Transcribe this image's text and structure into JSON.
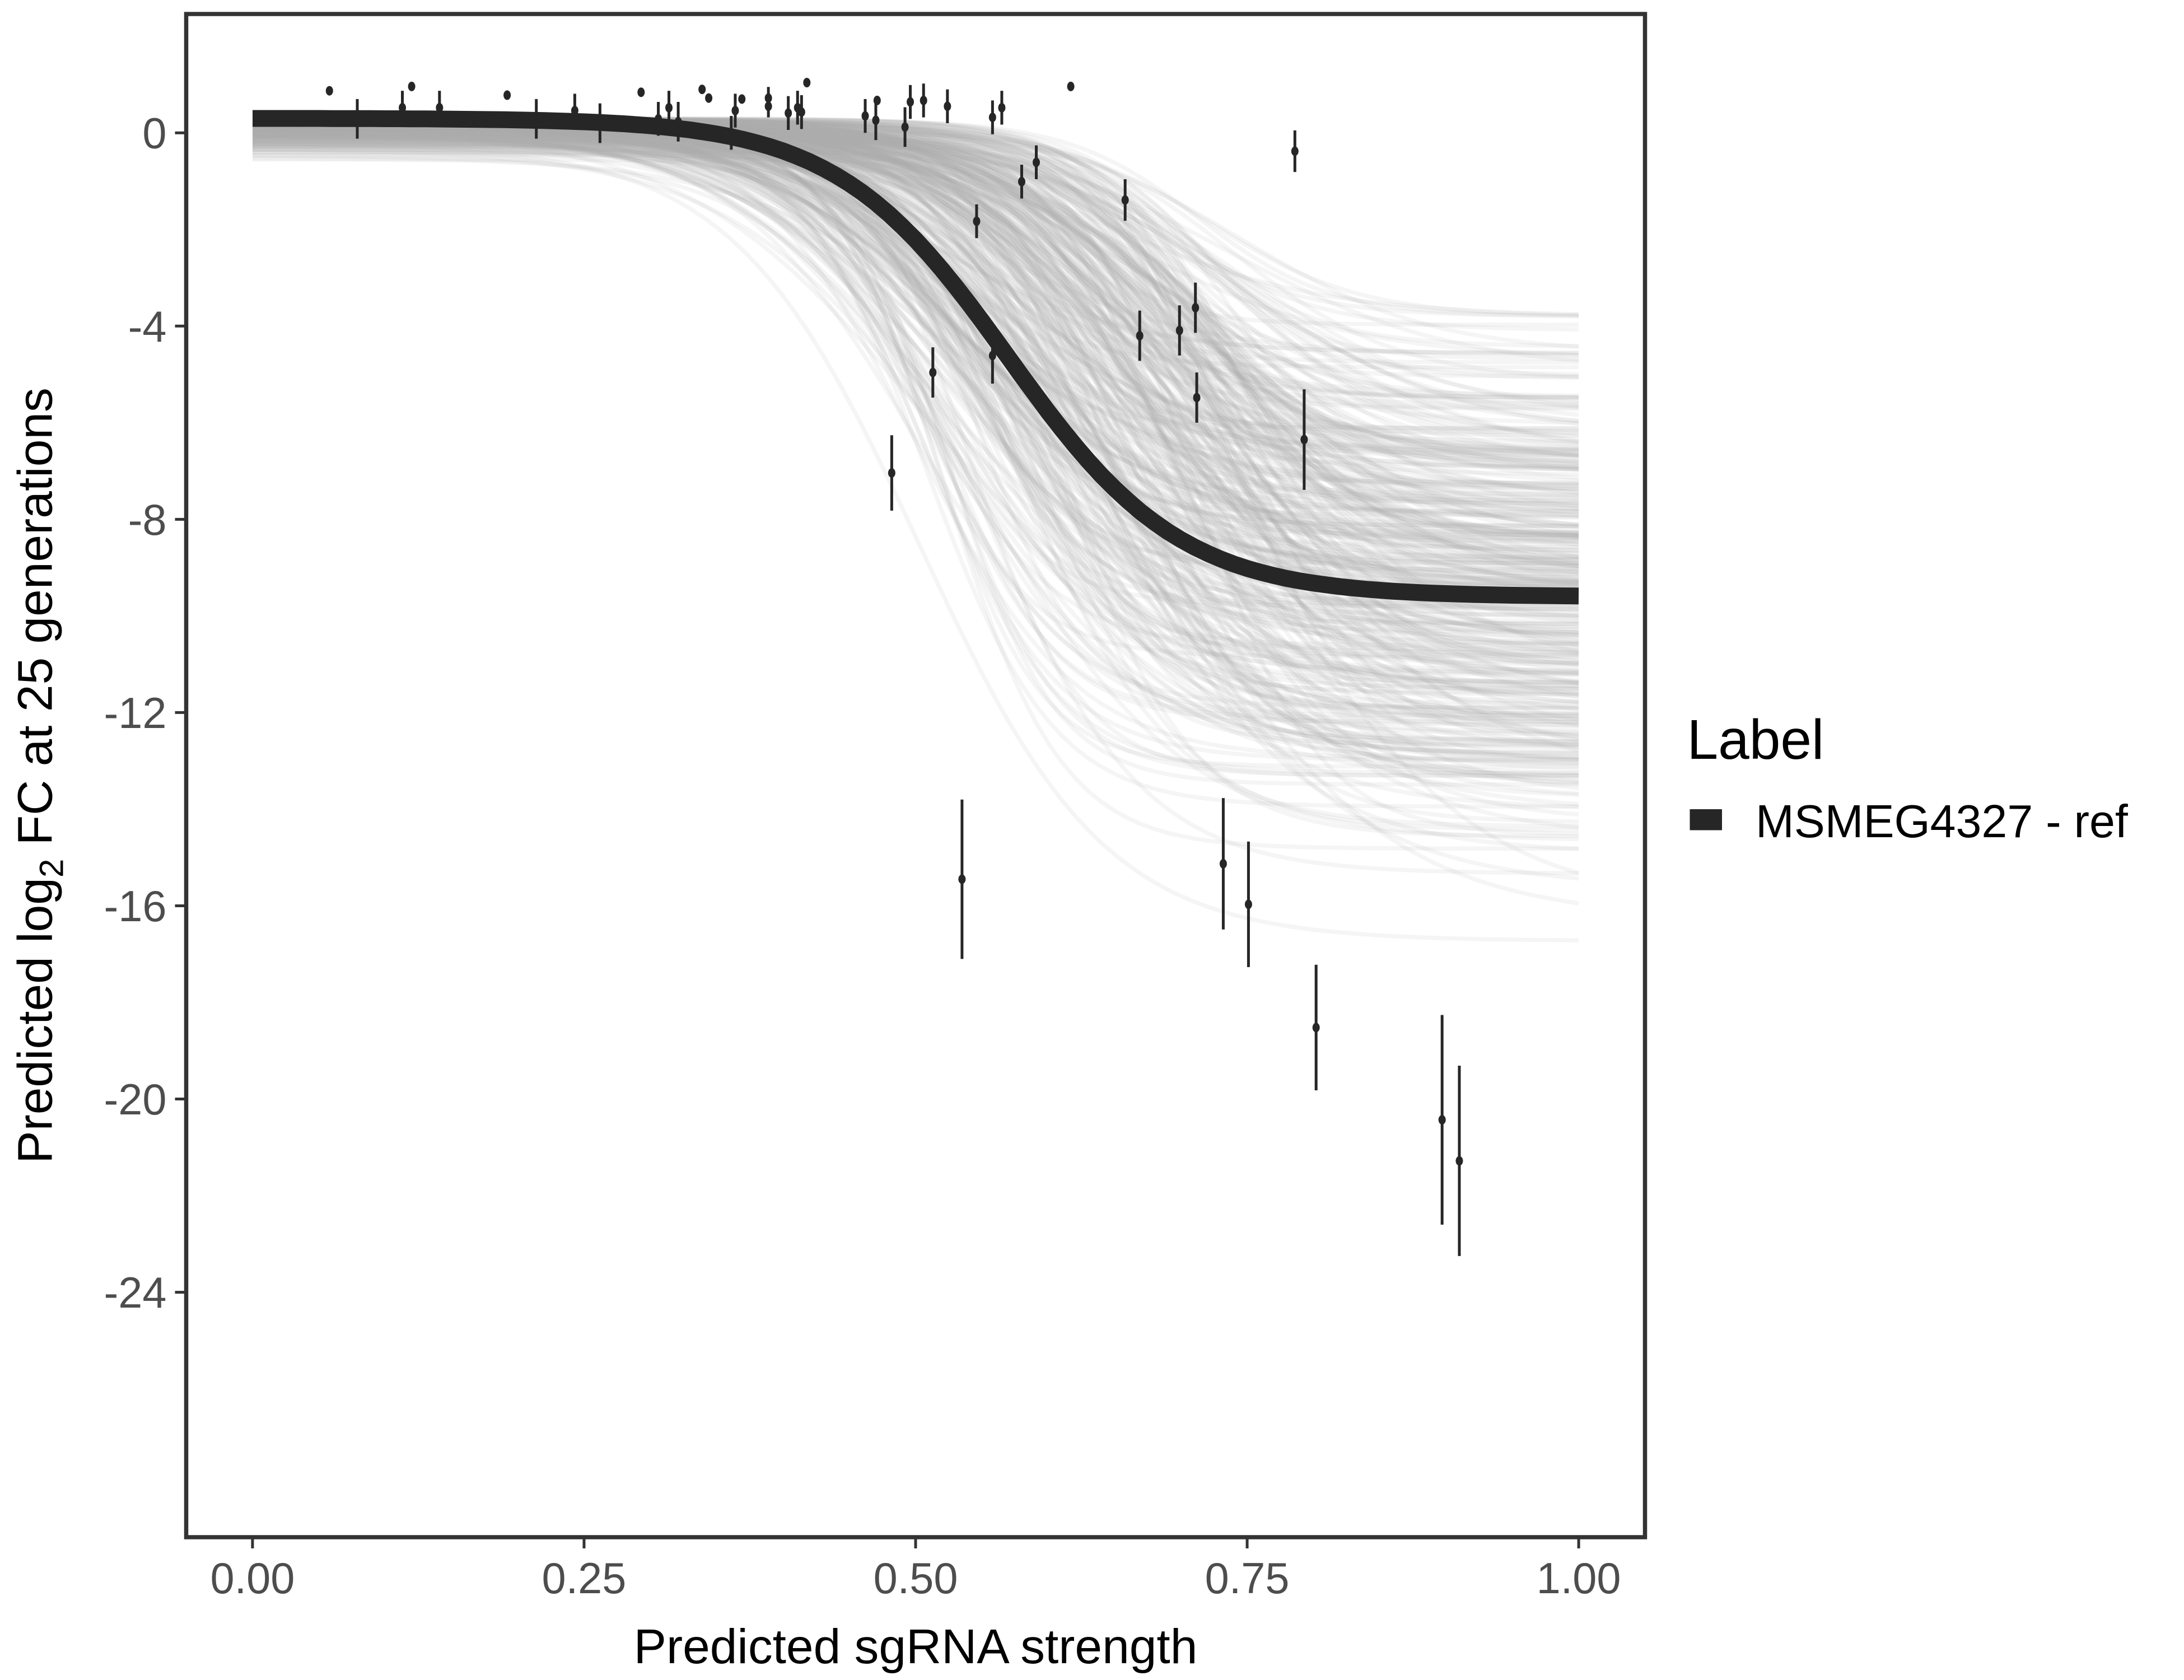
{
  "chart_data": {
    "type": "line",
    "title": "",
    "xlabel": "Predicted sgRNA strength",
    "ylabel": {
      "pre": "Predicted  log",
      "sub": "2",
      "post": " FC at 25 generations"
    },
    "xlim": [
      -0.05,
      1.05
    ],
    "ylim": [
      -29.07,
      2.46
    ],
    "x_ticks": [
      0,
      0.25,
      0.5,
      0.75,
      1
    ],
    "x_tick_labels": [
      "0.00",
      "0.25",
      "0.50",
      "0.75",
      "1.00"
    ],
    "y_ticks": [
      0,
      -4,
      -8,
      -12,
      -16,
      -20,
      -24
    ],
    "y_tick_labels": [
      "0",
      "-4",
      "-8",
      "-12",
      "-16",
      "-20",
      "-24"
    ],
    "grid": false,
    "legend": {
      "title": "Label",
      "position": "right",
      "entries": [
        {
          "label": "MSMEG4327 - ref",
          "color": "#262626"
        }
      ]
    },
    "fit_curve": {
      "name": "MSMEG4327 - ref",
      "form": "logistic",
      "upper": 0.3,
      "lower": -9.6,
      "midpoint": 0.57,
      "scale": 0.065,
      "color": "#262626"
    },
    "posterior_curves": {
      "count": 400,
      "color": "#aaaaaa",
      "upper_range": [
        -0.6,
        0.3
      ],
      "lower_range": [
        -18.5,
        -3.8
      ],
      "midpoint_range": [
        0.5,
        0.75
      ]
    },
    "points": [
      {
        "x": 0.058,
        "y": 0.87,
        "err": 0.0
      },
      {
        "x": 0.079,
        "y": 0.29,
        "err": 0.41
      },
      {
        "x": 0.113,
        "y": 0.52,
        "err": 0.35
      },
      {
        "x": 0.12,
        "y": 0.96,
        "err": 0.0
      },
      {
        "x": 0.141,
        "y": 0.52,
        "err": 0.35
      },
      {
        "x": 0.192,
        "y": 0.78,
        "err": 0.0
      },
      {
        "x": 0.214,
        "y": 0.29,
        "err": 0.41
      },
      {
        "x": 0.243,
        "y": 0.46,
        "err": 0.35
      },
      {
        "x": 0.262,
        "y": 0.2,
        "err": 0.41
      },
      {
        "x": 0.293,
        "y": 0.84,
        "err": 0.0
      },
      {
        "x": 0.306,
        "y": 0.29,
        "err": 0.35
      },
      {
        "x": 0.314,
        "y": 0.52,
        "err": 0.35
      },
      {
        "x": 0.321,
        "y": 0.23,
        "err": 0.41
      },
      {
        "x": 0.339,
        "y": 0.9,
        "err": 0.0
      },
      {
        "x": 0.344,
        "y": 0.72,
        "err": 0.0
      },
      {
        "x": 0.361,
        "y": 0.0,
        "err": 0.35
      },
      {
        "x": 0.364,
        "y": 0.46,
        "err": 0.35
      },
      {
        "x": 0.369,
        "y": 0.7,
        "err": 0.0
      },
      {
        "x": 0.389,
        "y": 0.72,
        "err": 0.23
      },
      {
        "x": 0.389,
        "y": 0.55,
        "err": 0.23
      },
      {
        "x": 0.404,
        "y": 0.41,
        "err": 0.35
      },
      {
        "x": 0.411,
        "y": 0.52,
        "err": 0.35
      },
      {
        "x": 0.414,
        "y": 0.43,
        "err": 0.35
      },
      {
        "x": 0.418,
        "y": 1.04,
        "err": 0.0
      },
      {
        "x": 0.462,
        "y": 0.35,
        "err": 0.35
      },
      {
        "x": 0.47,
        "y": 0.26,
        "err": 0.41
      },
      {
        "x": 0.471,
        "y": 0.67,
        "err": 0.0
      },
      {
        "x": 0.492,
        "y": 0.12,
        "err": 0.41
      },
      {
        "x": 0.496,
        "y": 0.64,
        "err": 0.35
      },
      {
        "x": 0.506,
        "y": 0.67,
        "err": 0.35
      },
      {
        "x": 0.524,
        "y": 0.55,
        "err": 0.35
      },
      {
        "x": 0.558,
        "y": 0.32,
        "err": 0.35
      },
      {
        "x": 0.565,
        "y": 0.52,
        "err": 0.35
      },
      {
        "x": 0.546,
        "y": -1.83,
        "err": 0.35
      },
      {
        "x": 0.58,
        "y": -1.01,
        "err": 0.35
      },
      {
        "x": 0.591,
        "y": -0.61,
        "err": 0.35
      },
      {
        "x": 0.617,
        "y": 0.96,
        "err": 0.0
      },
      {
        "x": 0.658,
        "y": -1.39,
        "err": 0.43
      },
      {
        "x": 0.513,
        "y": -4.96,
        "err": 0.52
      },
      {
        "x": 0.558,
        "y": -4.61,
        "err": 0.58
      },
      {
        "x": 0.482,
        "y": -7.04,
        "err": 0.78
      },
      {
        "x": 0.669,
        "y": -4.2,
        "err": 0.52
      },
      {
        "x": 0.699,
        "y": -4.09,
        "err": 0.52
      },
      {
        "x": 0.711,
        "y": -3.62,
        "err": 0.52
      },
      {
        "x": 0.712,
        "y": -5.48,
        "err": 0.52
      },
      {
        "x": 0.786,
        "y": -0.38,
        "err": 0.43
      },
      {
        "x": 0.793,
        "y": -6.35,
        "err": 1.04
      },
      {
        "x": 0.535,
        "y": -15.45,
        "err": 1.65
      },
      {
        "x": 0.732,
        "y": -15.13,
        "err": 1.36
      },
      {
        "x": 0.751,
        "y": -15.97,
        "err": 1.3
      },
      {
        "x": 0.802,
        "y": -18.52,
        "err": 1.3
      },
      {
        "x": 0.897,
        "y": -20.43,
        "err": 2.17
      },
      {
        "x": 0.91,
        "y": -21.28,
        "err": 1.97
      }
    ]
  }
}
